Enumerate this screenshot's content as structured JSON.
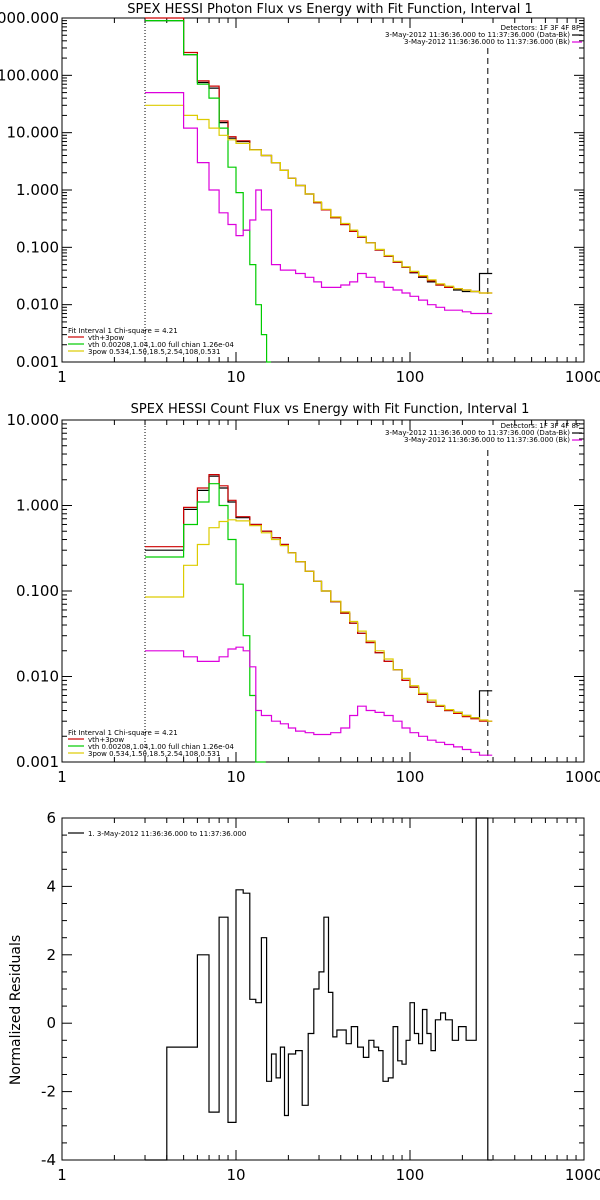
{
  "chart_data": [
    {
      "type": "line",
      "title": "SPEX HESSI Photon Flux vs Energy with Fit Function, Interval 1",
      "xscale": "log",
      "yscale": "log",
      "xlim": [
        1,
        1000
      ],
      "ylim": [
        0.001,
        1000
      ],
      "xticks": [
        "1",
        "10",
        "100",
        "1000"
      ],
      "yticks": [
        "0.001",
        "0.010",
        "0.100",
        "1.000",
        "10.000",
        "100.000",
        "1000.000"
      ],
      "header_lines": [
        "Detectors: 1F 3F 4F 8F",
        "3-May-2012 11:36:36.000 to 11:37:36.000 (Data-Bk)",
        "3-May-2012 11:36:36.000 to 11:37:36.000 (Bk)"
      ],
      "fit_text": [
        "Fit Interval 1   Chi-square = 4.21",
        "vth+3pow",
        "vth 0.00208,1.04,1.00  full chian 1.26e-04",
        "3pow 0.534,1.50,18.5,2.54,108,0.531"
      ],
      "vlines": [
        3,
        280
      ],
      "series": [
        {
          "color": "#000000",
          "x": [
            3,
            4,
            5,
            6,
            7,
            8,
            9,
            10,
            12,
            14,
            16,
            18,
            20,
            22,
            25,
            28,
            31,
            35,
            40,
            45,
            50,
            56,
            63,
            71,
            80,
            90,
            100,
            112,
            126,
            141,
            158,
            178,
            200,
            224,
            251,
            280
          ],
          "y": [
            900,
            900,
            230,
            75,
            60,
            15,
            8,
            7,
            5,
            4,
            3,
            2.2,
            1.6,
            1.2,
            0.85,
            0.6,
            0.45,
            0.33,
            0.25,
            0.19,
            0.15,
            0.12,
            0.09,
            0.07,
            0.055,
            0.045,
            0.036,
            0.03,
            0.025,
            0.022,
            0.02,
            0.018,
            0.017,
            0.017,
            0.035,
            0.035
          ]
        },
        {
          "color": "#cc0000",
          "x": [
            3,
            4,
            5,
            6,
            7,
            8,
            9,
            10,
            12,
            14,
            16,
            18,
            20,
            22,
            25,
            28,
            31,
            35,
            40,
            45,
            50,
            56,
            63,
            71,
            80,
            90,
            100,
            112,
            126,
            141,
            158,
            178,
            200,
            224,
            251,
            280
          ],
          "y": [
            1000,
            1000,
            250,
            80,
            65,
            16,
            8.5,
            7.2,
            5,
            4,
            3,
            2.2,
            1.6,
            1.2,
            0.85,
            0.6,
            0.45,
            0.33,
            0.25,
            0.19,
            0.15,
            0.12,
            0.09,
            0.07,
            0.055,
            0.045,
            0.037,
            0.031,
            0.026,
            0.022,
            0.02,
            0.019,
            0.018,
            0.017,
            0.016,
            0.016
          ]
        },
        {
          "color": "#00cc00",
          "x": [
            3,
            4,
            5,
            6,
            7,
            8,
            9,
            10,
            11,
            12,
            13,
            14,
            15
          ],
          "y": [
            900,
            900,
            230,
            70,
            40,
            12,
            2.5,
            0.9,
            0.2,
            0.05,
            0.01,
            0.003,
            0.001
          ]
        },
        {
          "color": "#ddcc00",
          "x": [
            3,
            4,
            5,
            6,
            7,
            8,
            9,
            10,
            12,
            14,
            16,
            18,
            20,
            22,
            25,
            28,
            31,
            35,
            40,
            45,
            50,
            56,
            63,
            71,
            80,
            90,
            100,
            112,
            126,
            141,
            158,
            178,
            200,
            224,
            251,
            280
          ],
          "y": [
            30,
            30,
            20,
            17,
            12,
            9,
            7.5,
            6.5,
            5,
            4,
            3,
            2.2,
            1.6,
            1.2,
            0.85,
            0.62,
            0.46,
            0.34,
            0.26,
            0.2,
            0.155,
            0.12,
            0.092,
            0.072,
            0.057,
            0.046,
            0.038,
            0.032,
            0.027,
            0.023,
            0.021,
            0.019,
            0.018,
            0.017,
            0.016,
            0.016
          ]
        },
        {
          "color": "#dd00dd",
          "x": [
            3,
            4,
            5,
            6,
            7,
            8,
            9,
            10,
            11,
            12,
            13,
            14,
            16,
            18,
            20,
            22,
            25,
            28,
            31,
            35,
            40,
            45,
            50,
            56,
            63,
            71,
            80,
            90,
            100,
            112,
            126,
            141,
            158,
            178,
            200,
            224,
            251,
            280
          ],
          "y": [
            50,
            50,
            12,
            3,
            1,
            0.4,
            0.25,
            0.16,
            0.2,
            0.3,
            1,
            0.45,
            0.05,
            0.04,
            0.04,
            0.035,
            0.03,
            0.025,
            0.02,
            0.02,
            0.022,
            0.025,
            0.035,
            0.03,
            0.025,
            0.02,
            0.018,
            0.016,
            0.014,
            0.012,
            0.01,
            0.009,
            0.008,
            0.008,
            0.0075,
            0.007,
            0.007,
            0.007
          ]
        }
      ]
    },
    {
      "type": "line",
      "title": "SPEX HESSI Count Flux vs Energy with Fit Function, Interval 1",
      "xscale": "log",
      "yscale": "log",
      "xlim": [
        1,
        1000
      ],
      "ylim": [
        0.001,
        10
      ],
      "xticks": [
        "1",
        "10",
        "100",
        "1000"
      ],
      "yticks": [
        "0.001",
        "0.010",
        "0.100",
        "1.000",
        "10.000"
      ],
      "header_lines": [
        "Detectors: 1F 3F 4F 8F",
        "3-May-2012 11:36:36.000 to 11:37:36.000 (Data-Bk)",
        "3-May-2012 11:36:36.000 to 11:37:36.000 (Bk)"
      ],
      "fit_text": [
        "Fit Interval 1   Chi-square = 4.21",
        "vth+3pow",
        "vth 0.00208,1.04,1.00  full chian 1.26e-04",
        "3pow 0.534,1.50,18.5,2.54,108,0.531"
      ],
      "vlines": [
        3,
        280
      ],
      "series": [
        {
          "color": "#000000",
          "x": [
            3,
            4,
            5,
            6,
            7,
            8,
            9,
            10,
            12,
            14,
            16,
            18,
            20,
            22,
            25,
            28,
            31,
            35,
            40,
            45,
            50,
            56,
            63,
            71,
            80,
            90,
            100,
            112,
            126,
            141,
            158,
            178,
            200,
            224,
            251,
            280
          ],
          "y": [
            0.3,
            0.3,
            0.9,
            1.5,
            2.2,
            1.6,
            1.1,
            0.72,
            0.6,
            0.5,
            0.42,
            0.35,
            0.28,
            0.22,
            0.17,
            0.13,
            0.1,
            0.075,
            0.055,
            0.042,
            0.032,
            0.025,
            0.019,
            0.015,
            0.012,
            0.009,
            0.0075,
            0.0062,
            0.005,
            0.0045,
            0.004,
            0.0038,
            0.0035,
            0.0033,
            0.0068,
            0.0068
          ]
        },
        {
          "color": "#cc0000",
          "x": [
            3,
            4,
            5,
            6,
            7,
            8,
            9,
            10,
            12,
            14,
            16,
            18,
            20,
            22,
            25,
            28,
            31,
            35,
            40,
            45,
            50,
            56,
            63,
            71,
            80,
            90,
            100,
            112,
            126,
            141,
            158,
            178,
            200,
            224,
            251,
            280
          ],
          "y": [
            0.33,
            0.33,
            0.95,
            1.6,
            2.3,
            1.7,
            1.15,
            0.74,
            0.6,
            0.5,
            0.42,
            0.35,
            0.28,
            0.22,
            0.17,
            0.13,
            0.1,
            0.075,
            0.055,
            0.042,
            0.032,
            0.025,
            0.019,
            0.015,
            0.012,
            0.009,
            0.0075,
            0.0062,
            0.005,
            0.0045,
            0.004,
            0.0037,
            0.0034,
            0.0032,
            0.003,
            0.003
          ]
        },
        {
          "color": "#00cc00",
          "x": [
            3,
            4,
            5,
            6,
            7,
            8,
            9,
            10,
            11,
            12,
            13,
            14
          ],
          "y": [
            0.25,
            0.25,
            0.6,
            1.1,
            1.8,
            1.0,
            0.4,
            0.12,
            0.03,
            0.006,
            0.001,
            0.001
          ]
        },
        {
          "color": "#ddcc00",
          "x": [
            3,
            4,
            5,
            6,
            7,
            8,
            9,
            10,
            12,
            14,
            16,
            18,
            20,
            22,
            25,
            28,
            31,
            35,
            40,
            45,
            50,
            56,
            63,
            71,
            80,
            90,
            100,
            112,
            126,
            141,
            158,
            178,
            200,
            224,
            251,
            280
          ],
          "y": [
            0.085,
            0.085,
            0.2,
            0.35,
            0.55,
            0.65,
            0.68,
            0.66,
            0.58,
            0.48,
            0.4,
            0.34,
            0.28,
            0.22,
            0.17,
            0.13,
            0.1,
            0.076,
            0.057,
            0.044,
            0.034,
            0.026,
            0.02,
            0.016,
            0.012,
            0.0095,
            0.0078,
            0.0064,
            0.0053,
            0.0046,
            0.0041,
            0.0038,
            0.0035,
            0.0033,
            0.0031,
            0.003
          ]
        },
        {
          "color": "#dd00dd",
          "x": [
            3,
            4,
            5,
            6,
            7,
            8,
            9,
            10,
            11,
            12,
            13,
            14,
            16,
            18,
            20,
            22,
            25,
            28,
            31,
            35,
            40,
            45,
            50,
            56,
            63,
            71,
            80,
            90,
            100,
            112,
            126,
            141,
            158,
            178,
            200,
            224,
            251,
            280
          ],
          "y": [
            0.02,
            0.02,
            0.017,
            0.015,
            0.015,
            0.017,
            0.021,
            0.022,
            0.02,
            0.013,
            0.004,
            0.0035,
            0.003,
            0.0028,
            0.0025,
            0.0023,
            0.0022,
            0.0021,
            0.0021,
            0.0022,
            0.0025,
            0.0035,
            0.0045,
            0.004,
            0.0038,
            0.0035,
            0.003,
            0.0025,
            0.0022,
            0.002,
            0.0018,
            0.0017,
            0.0016,
            0.0015,
            0.0014,
            0.0013,
            0.0012,
            0.0012
          ]
        }
      ]
    },
    {
      "type": "line",
      "title": "",
      "xscale": "log",
      "yscale": "linear",
      "xlim": [
        1,
        1000
      ],
      "ylim": [
        -4,
        6
      ],
      "xticks": [
        "1",
        "10",
        "100",
        "1000"
      ],
      "yticks": [
        "-4",
        "-2",
        "0",
        "2",
        "4",
        "6"
      ],
      "ylabel": "Normalized Residuals",
      "legend": "1.  3-May-2012 11:36:36.000 to 11:37:36.000",
      "series": [
        {
          "color": "#000000",
          "x": [
            3,
            4,
            5,
            6,
            7,
            8,
            9,
            10,
            11,
            12,
            13,
            14,
            15,
            16,
            17,
            18,
            19,
            20,
            22,
            24,
            26,
            28,
            30,
            32,
            34,
            36,
            38,
            40,
            43,
            46,
            50,
            54,
            58,
            62,
            66,
            70,
            75,
            80,
            85,
            90,
            95,
            100,
            106,
            112,
            118,
            125,
            132,
            140,
            150,
            160,
            175,
            190,
            210,
            240,
            265,
            280
          ],
          "y": [
            -4,
            -0.7,
            -0.7,
            2.0,
            -2.6,
            3.1,
            -2.9,
            3.9,
            3.8,
            0.7,
            0.6,
            2.5,
            -1.7,
            -0.9,
            -1.6,
            -0.7,
            -2.7,
            -0.9,
            -0.8,
            -2.4,
            -0.3,
            1.0,
            1.5,
            3.1,
            0.9,
            -0.4,
            -0.2,
            -0.2,
            -0.6,
            -0.1,
            -0.7,
            -1.0,
            -0.5,
            -0.7,
            -0.8,
            -1.7,
            -1.6,
            -0.1,
            -1.1,
            -1.2,
            -0.5,
            0.6,
            -0.3,
            -0.6,
            0.4,
            -0.3,
            -0.8,
            0.1,
            0.3,
            0.1,
            -0.5,
            -0.1,
            -0.5,
            6.0,
            6.0,
            -4
          ]
        }
      ]
    }
  ]
}
